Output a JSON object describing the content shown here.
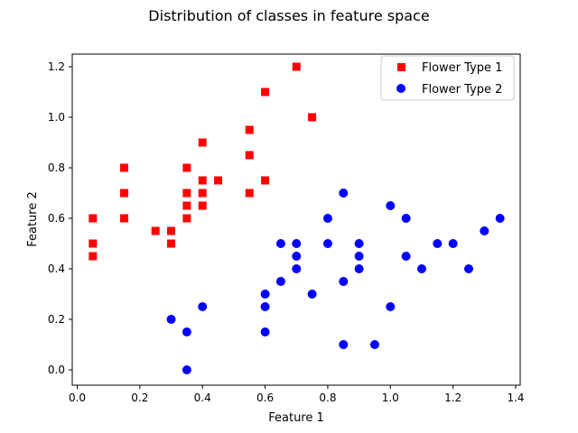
{
  "chart_data": {
    "type": "scatter",
    "title": "Distribution of classes in feature space",
    "xlabel": "Feature 1",
    "ylabel": "Feature 2",
    "xlim": [
      -0.016,
      1.416
    ],
    "ylim": [
      -0.06,
      1.25
    ],
    "xticks": [
      0.0,
      0.2,
      0.4,
      0.6,
      0.8,
      1.0,
      1.2,
      1.4
    ],
    "xtick_labels": [
      "0.0",
      "0.2",
      "0.4",
      "0.6",
      "0.8",
      "1.0",
      "1.2",
      "1.4"
    ],
    "yticks": [
      0.0,
      0.2,
      0.4,
      0.6,
      0.8,
      1.0,
      1.2
    ],
    "ytick_labels": [
      "0.0",
      "0.2",
      "0.4",
      "0.6",
      "0.8",
      "1.0",
      "1.2"
    ],
    "grid": false,
    "legend_position": "upper right",
    "series": [
      {
        "name": "Flower Type 1",
        "color": "#ff0000",
        "marker": "square",
        "x": [
          0.05,
          0.05,
          0.05,
          0.15,
          0.15,
          0.15,
          0.25,
          0.3,
          0.3,
          0.35,
          0.35,
          0.35,
          0.35,
          0.4,
          0.4,
          0.4,
          0.4,
          0.45,
          0.55,
          0.55,
          0.55,
          0.6,
          0.6,
          0.7,
          0.75
        ],
        "y": [
          0.6,
          0.5,
          0.45,
          0.8,
          0.7,
          0.6,
          0.55,
          0.55,
          0.5,
          0.8,
          0.7,
          0.65,
          0.6,
          0.9,
          0.75,
          0.7,
          0.65,
          0.75,
          0.95,
          0.85,
          0.7,
          1.1,
          0.75,
          1.2,
          1.0
        ]
      },
      {
        "name": "Flower Type 2",
        "color": "#0000ff",
        "marker": "circle",
        "x": [
          0.3,
          0.35,
          0.35,
          0.4,
          0.6,
          0.6,
          0.6,
          0.65,
          0.65,
          0.7,
          0.7,
          0.7,
          0.75,
          0.8,
          0.8,
          0.85,
          0.85,
          0.85,
          0.9,
          0.9,
          0.9,
          0.95,
          1.0,
          1.0,
          1.05,
          1.05,
          1.1,
          1.15,
          1.2,
          1.25,
          1.3,
          1.35
        ],
        "y": [
          0.2,
          0.15,
          0.0,
          0.25,
          0.3,
          0.25,
          0.15,
          0.5,
          0.35,
          0.5,
          0.45,
          0.4,
          0.3,
          0.6,
          0.5,
          0.7,
          0.35,
          0.1,
          0.5,
          0.45,
          0.4,
          0.1,
          0.65,
          0.25,
          0.6,
          0.45,
          0.4,
          0.5,
          0.5,
          0.4,
          0.55,
          0.6
        ]
      }
    ]
  }
}
